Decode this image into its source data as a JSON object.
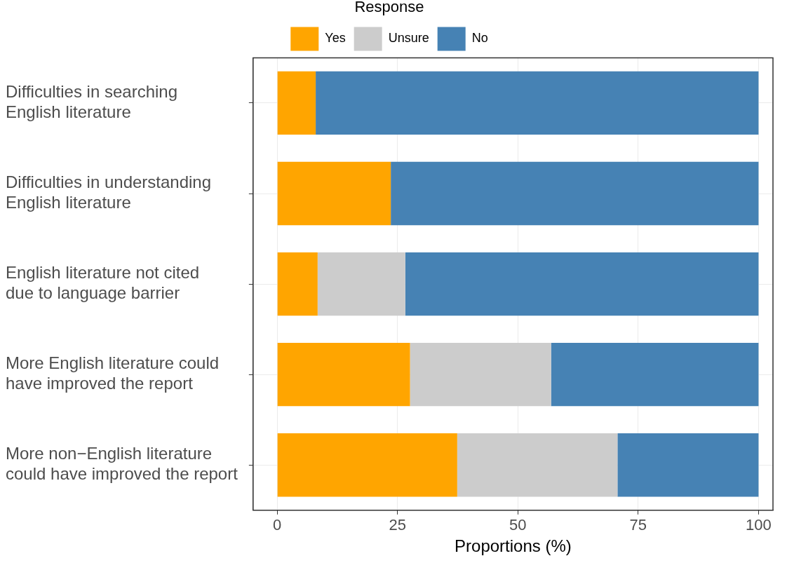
{
  "chart_data": {
    "type": "bar",
    "orientation": "horizontal",
    "stacked": true,
    "xlabel": "Proportions (%)",
    "legend_title": "Response",
    "legend": "top",
    "categories": [
      "Difficulties in searching English literature",
      "Difficulties in understanding English literature",
      "English literature not cited due to language barrier",
      "More English literature could have improved the report",
      "More non−English literature could have improved the report"
    ],
    "series": [
      {
        "name": "Yes",
        "color": "#ffa500",
        "values": [
          8.0,
          23.6,
          8.4,
          27.6,
          37.4
        ]
      },
      {
        "name": "Unsure",
        "color": "#cccccc",
        "values": [
          0,
          0,
          18.2,
          29.3,
          33.3
        ]
      },
      {
        "name": "No",
        "color": "#4682b4",
        "values": [
          92.0,
          76.4,
          73.4,
          43.1,
          29.3
        ]
      }
    ],
    "xlim": [
      -5,
      103
    ],
    "xticks": [
      0,
      25,
      50,
      75,
      100
    ],
    "grid": true
  }
}
